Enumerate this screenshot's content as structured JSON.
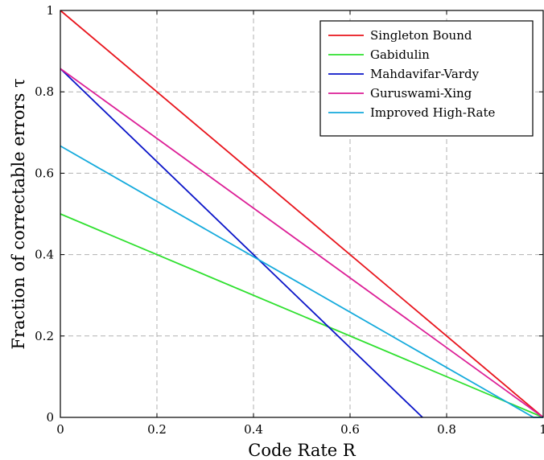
{
  "chart_data": {
    "type": "line",
    "title": "",
    "xlabel": "Code Rate R",
    "ylabel": "Fraction of correctable errors τ",
    "xlim": [
      0,
      1
    ],
    "ylim": [
      0,
      1
    ],
    "xticks": [
      "0",
      "0.2",
      "0.4",
      "0.6",
      "0.8",
      "1"
    ],
    "yticks": [
      "0",
      "0.2",
      "0.4",
      "0.6",
      "0.8",
      "1"
    ],
    "grid": true,
    "legend_position": "top-right",
    "series": [
      {
        "name": "Singleton Bound",
        "color": "#e8141c",
        "x": [
          0,
          1
        ],
        "y": [
          1,
          0
        ]
      },
      {
        "name": "Gabidulin",
        "color": "#2fe02f",
        "x": [
          0,
          1
        ],
        "y": [
          0.5,
          0
        ]
      },
      {
        "name": "Mahdavifar-Vardy",
        "color": "#0a14c8",
        "x": [
          0,
          0.75
        ],
        "y": [
          0.857,
          0
        ]
      },
      {
        "name": "Guruswami-Xing",
        "color": "#dc1e96",
        "x": [
          0,
          1
        ],
        "y": [
          0.857,
          0
        ]
      },
      {
        "name": "Improved High-Rate",
        "color": "#14aadc",
        "x": [
          0,
          0.98,
          1
        ],
        "y": [
          0.667,
          0,
          0
        ]
      }
    ]
  }
}
